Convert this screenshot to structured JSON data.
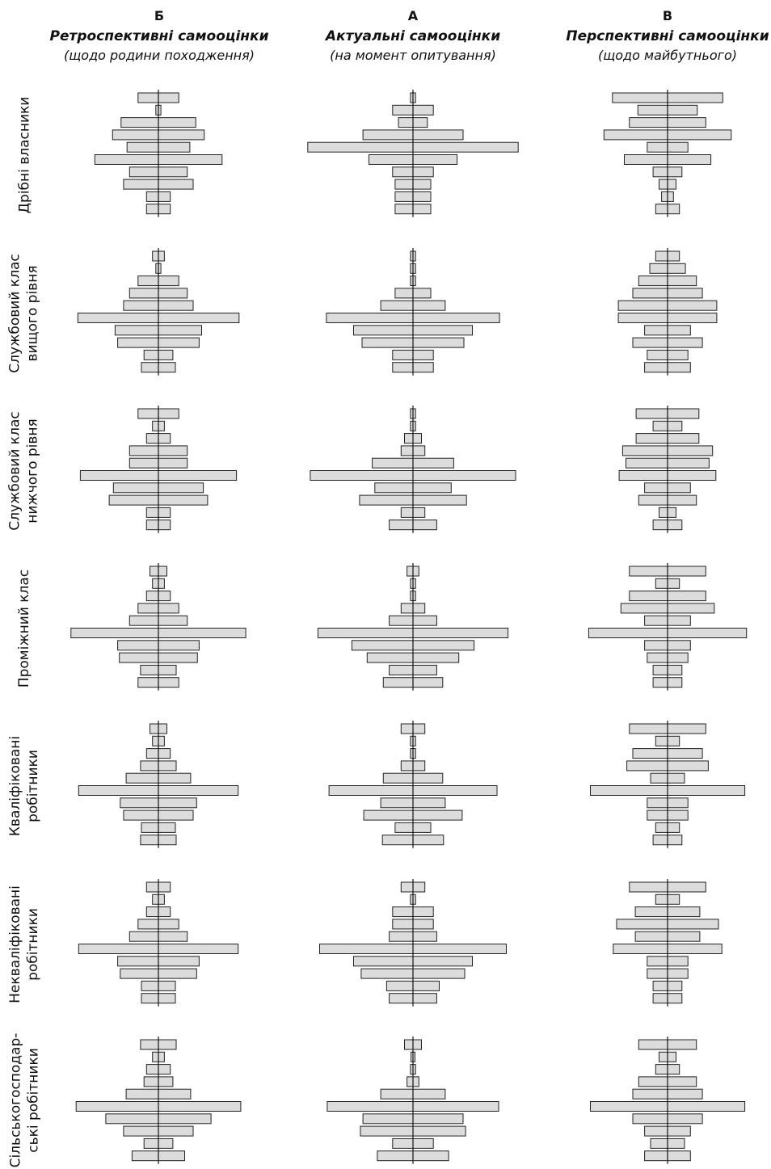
{
  "columns": [
    {
      "letter": "Б",
      "title": "Ретроспективні самооцінки",
      "subtitle": "(щодо родини походження)"
    },
    {
      "letter": "А",
      "title": "Актуальні самооцінки",
      "subtitle": "(на момент опитування)"
    },
    {
      "letter": "В",
      "title": "Перспективні самооцінки",
      "subtitle": "(щодо майбутнього)"
    }
  ],
  "rows": [
    {
      "label": [
        "Дрібні власники"
      ]
    },
    {
      "label": [
        "Службовий клас",
        "вищого рівня"
      ]
    },
    {
      "label": [
        "Службовий клас",
        "нижчого рівня"
      ]
    },
    {
      "label": [
        "Проміжний клас"
      ]
    },
    {
      "label": [
        "Кваліфіковані",
        "робітники"
      ]
    },
    {
      "label": [
        "Некваліфіковані",
        "робітники"
      ]
    },
    {
      "label": [
        "Сільськогосподар-",
        "ські робітники"
      ]
    }
  ],
  "chart_data": {
    "type": "bar",
    "orientation": "horizontal-centered (population pyramid)",
    "levels_per_chart": 10,
    "bar_fill": "#dcdcdc",
    "bar_stroke": "#222222",
    "note_on_values": "bar width relative units (full half-width ≈ 1.0), estimated; 10 bars per panel from top to bottom",
    "panels": [
      [
        {
          "left": 0.24,
          "right": 0.24
        },
        {
          "left": 0.03,
          "right": 0.03
        },
        {
          "left": 0.44,
          "right": 0.44
        },
        {
          "left": 0.54,
          "right": 0.54
        },
        {
          "left": 0.37,
          "right": 0.37
        },
        {
          "left": 0.75,
          "right": 0.75
        },
        {
          "left": 0.34,
          "right": 0.34
        },
        {
          "left": 0.41,
          "right": 0.41
        },
        {
          "left": 0.14,
          "right": 0.14
        },
        {
          "left": 0.14,
          "right": 0.14
        }
      ],
      [
        {
          "left": 0.03,
          "right": 0.03
        },
        {
          "left": 0.24,
          "right": 0.24
        },
        {
          "left": 0.17,
          "right": 0.17
        },
        {
          "left": 0.59,
          "right": 0.59
        },
        {
          "left": 1.24,
          "right": 1.24
        },
        {
          "left": 0.52,
          "right": 0.52
        },
        {
          "left": 0.24,
          "right": 0.24
        },
        {
          "left": 0.21,
          "right": 0.21
        },
        {
          "left": 0.21,
          "right": 0.21
        },
        {
          "left": 0.21,
          "right": 0.21
        }
      ],
      [
        {
          "left": 0.65,
          "right": 0.65
        },
        {
          "left": 0.35,
          "right": 0.35
        },
        {
          "left": 0.45,
          "right": 0.45
        },
        {
          "left": 0.75,
          "right": 0.75
        },
        {
          "left": 0.24,
          "right": 0.24
        },
        {
          "left": 0.51,
          "right": 0.51
        },
        {
          "left": 0.17,
          "right": 0.17
        },
        {
          "left": 0.1,
          "right": 0.1
        },
        {
          "left": 0.07,
          "right": 0.07
        },
        {
          "left": 0.14,
          "right": 0.14
        }
      ],
      [
        {
          "left": 0.07,
          "right": 0.07
        },
        {
          "left": 0.03,
          "right": 0.03
        },
        {
          "left": 0.24,
          "right": 0.24
        },
        {
          "left": 0.34,
          "right": 0.34
        },
        {
          "left": 0.41,
          "right": 0.41
        },
        {
          "left": 0.95,
          "right": 0.95
        },
        {
          "left": 0.51,
          "right": 0.51
        },
        {
          "left": 0.48,
          "right": 0.48
        },
        {
          "left": 0.17,
          "right": 0.17
        },
        {
          "left": 0.2,
          "right": 0.2
        }
      ],
      [
        {
          "left": 0.03,
          "right": 0.03
        },
        {
          "left": 0.03,
          "right": 0.03
        },
        {
          "left": 0.03,
          "right": 0.03
        },
        {
          "left": 0.21,
          "right": 0.21
        },
        {
          "left": 0.38,
          "right": 0.38
        },
        {
          "left": 1.02,
          "right": 1.02
        },
        {
          "left": 0.7,
          "right": 0.7
        },
        {
          "left": 0.6,
          "right": 0.6
        },
        {
          "left": 0.24,
          "right": 0.24
        },
        {
          "left": 0.24,
          "right": 0.24
        }
      ],
      [
        {
          "left": 0.14,
          "right": 0.14
        },
        {
          "left": 0.21,
          "right": 0.21
        },
        {
          "left": 0.34,
          "right": 0.34
        },
        {
          "left": 0.41,
          "right": 0.41
        },
        {
          "left": 0.58,
          "right": 0.58
        },
        {
          "left": 0.58,
          "right": 0.58
        },
        {
          "left": 0.27,
          "right": 0.27
        },
        {
          "left": 0.41,
          "right": 0.41
        },
        {
          "left": 0.24,
          "right": 0.24
        },
        {
          "left": 0.27,
          "right": 0.27
        }
      ],
      [
        {
          "left": 0.24,
          "right": 0.24
        },
        {
          "left": 0.07,
          "right": 0.07
        },
        {
          "left": 0.14,
          "right": 0.14
        },
        {
          "left": 0.34,
          "right": 0.34
        },
        {
          "left": 0.34,
          "right": 0.34
        },
        {
          "left": 0.92,
          "right": 0.92
        },
        {
          "left": 0.53,
          "right": 0.53
        },
        {
          "left": 0.58,
          "right": 0.58
        },
        {
          "left": 0.14,
          "right": 0.14
        },
        {
          "left": 0.14,
          "right": 0.14
        }
      ],
      [
        {
          "left": 0.03,
          "right": 0.03
        },
        {
          "left": 0.03,
          "right": 0.03
        },
        {
          "left": 0.1,
          "right": 0.1
        },
        {
          "left": 0.14,
          "right": 0.14
        },
        {
          "left": 0.48,
          "right": 0.48
        },
        {
          "left": 1.21,
          "right": 1.21
        },
        {
          "left": 0.45,
          "right": 0.45
        },
        {
          "left": 0.63,
          "right": 0.63
        },
        {
          "left": 0.14,
          "right": 0.14
        },
        {
          "left": 0.28,
          "right": 0.28
        }
      ],
      [
        {
          "left": 0.37,
          "right": 0.37
        },
        {
          "left": 0.17,
          "right": 0.17
        },
        {
          "left": 0.37,
          "right": 0.37
        },
        {
          "left": 0.53,
          "right": 0.53
        },
        {
          "left": 0.49,
          "right": 0.49
        },
        {
          "left": 0.57,
          "right": 0.57
        },
        {
          "left": 0.27,
          "right": 0.27
        },
        {
          "left": 0.34,
          "right": 0.34
        },
        {
          "left": 0.1,
          "right": 0.1
        },
        {
          "left": 0.17,
          "right": 0.17
        }
      ],
      [
        {
          "left": 0.1,
          "right": 0.1
        },
        {
          "left": 0.07,
          "right": 0.07
        },
        {
          "left": 0.14,
          "right": 0.14
        },
        {
          "left": 0.24,
          "right": 0.24
        },
        {
          "left": 0.34,
          "right": 0.34
        },
        {
          "left": 1.03,
          "right": 1.03
        },
        {
          "left": 0.48,
          "right": 0.48
        },
        {
          "left": 0.46,
          "right": 0.46
        },
        {
          "left": 0.21,
          "right": 0.21
        },
        {
          "left": 0.24,
          "right": 0.24
        }
      ],
      [
        {
          "left": 0.07,
          "right": 0.07
        },
        {
          "left": 0.03,
          "right": 0.03
        },
        {
          "left": 0.03,
          "right": 0.03
        },
        {
          "left": 0.14,
          "right": 0.14
        },
        {
          "left": 0.28,
          "right": 0.28
        },
        {
          "left": 1.12,
          "right": 1.12
        },
        {
          "left": 0.72,
          "right": 0.72
        },
        {
          "left": 0.54,
          "right": 0.54
        },
        {
          "left": 0.28,
          "right": 0.28
        },
        {
          "left": 0.35,
          "right": 0.35
        }
      ],
      [
        {
          "left": 0.45,
          "right": 0.45
        },
        {
          "left": 0.14,
          "right": 0.14
        },
        {
          "left": 0.45,
          "right": 0.45
        },
        {
          "left": 0.55,
          "right": 0.55
        },
        {
          "left": 0.27,
          "right": 0.27
        },
        {
          "left": 0.93,
          "right": 0.93
        },
        {
          "left": 0.27,
          "right": 0.27
        },
        {
          "left": 0.24,
          "right": 0.24
        },
        {
          "left": 0.17,
          "right": 0.17
        },
        {
          "left": 0.17,
          "right": 0.17
        }
      ],
      [
        {
          "left": 0.1,
          "right": 0.1
        },
        {
          "left": 0.07,
          "right": 0.07
        },
        {
          "left": 0.14,
          "right": 0.14
        },
        {
          "left": 0.21,
          "right": 0.21
        },
        {
          "left": 0.38,
          "right": 0.38
        },
        {
          "left": 0.94,
          "right": 0.94
        },
        {
          "left": 0.45,
          "right": 0.45
        },
        {
          "left": 0.41,
          "right": 0.41
        },
        {
          "left": 0.2,
          "right": 0.2
        },
        {
          "left": 0.21,
          "right": 0.21
        }
      ],
      [
        {
          "left": 0.14,
          "right": 0.14
        },
        {
          "left": 0.03,
          "right": 0.03
        },
        {
          "left": 0.03,
          "right": 0.03
        },
        {
          "left": 0.14,
          "right": 0.14
        },
        {
          "left": 0.35,
          "right": 0.35
        },
        {
          "left": 0.99,
          "right": 0.99
        },
        {
          "left": 0.38,
          "right": 0.38
        },
        {
          "left": 0.58,
          "right": 0.58
        },
        {
          "left": 0.21,
          "right": 0.21
        },
        {
          "left": 0.36,
          "right": 0.36
        }
      ],
      [
        {
          "left": 0.45,
          "right": 0.45
        },
        {
          "left": 0.14,
          "right": 0.14
        },
        {
          "left": 0.41,
          "right": 0.41
        },
        {
          "left": 0.48,
          "right": 0.48
        },
        {
          "left": 0.2,
          "right": 0.2
        },
        {
          "left": 0.91,
          "right": 0.91
        },
        {
          "left": 0.24,
          "right": 0.24
        },
        {
          "left": 0.24,
          "right": 0.24
        },
        {
          "left": 0.14,
          "right": 0.14
        },
        {
          "left": 0.17,
          "right": 0.17
        }
      ],
      [
        {
          "left": 0.14,
          "right": 0.14
        },
        {
          "left": 0.07,
          "right": 0.07
        },
        {
          "left": 0.14,
          "right": 0.14
        },
        {
          "left": 0.24,
          "right": 0.24
        },
        {
          "left": 0.34,
          "right": 0.34
        },
        {
          "left": 0.94,
          "right": 0.94
        },
        {
          "left": 0.48,
          "right": 0.48
        },
        {
          "left": 0.45,
          "right": 0.45
        },
        {
          "left": 0.2,
          "right": 0.2
        },
        {
          "left": 0.2,
          "right": 0.2
        }
      ],
      [
        {
          "left": 0.14,
          "right": 0.14
        },
        {
          "left": 0.03,
          "right": 0.03
        },
        {
          "left": 0.24,
          "right": 0.24
        },
        {
          "left": 0.24,
          "right": 0.24
        },
        {
          "left": 0.28,
          "right": 0.28
        },
        {
          "left": 1.1,
          "right": 1.1
        },
        {
          "left": 0.7,
          "right": 0.7
        },
        {
          "left": 0.61,
          "right": 0.61
        },
        {
          "left": 0.31,
          "right": 0.31
        },
        {
          "left": 0.28,
          "right": 0.28
        }
      ],
      [
        {
          "left": 0.45,
          "right": 0.45
        },
        {
          "left": 0.14,
          "right": 0.14
        },
        {
          "left": 0.38,
          "right": 0.38
        },
        {
          "left": 0.6,
          "right": 0.6
        },
        {
          "left": 0.38,
          "right": 0.38
        },
        {
          "left": 0.64,
          "right": 0.64
        },
        {
          "left": 0.24,
          "right": 0.24
        },
        {
          "left": 0.24,
          "right": 0.24
        },
        {
          "left": 0.17,
          "right": 0.17
        },
        {
          "left": 0.17,
          "right": 0.17
        }
      ],
      [
        {
          "left": 0.21,
          "right": 0.21
        },
        {
          "left": 0.07,
          "right": 0.07
        },
        {
          "left": 0.14,
          "right": 0.14
        },
        {
          "left": 0.17,
          "right": 0.17
        },
        {
          "left": 0.38,
          "right": 0.38
        },
        {
          "left": 0.97,
          "right": 0.97
        },
        {
          "left": 0.62,
          "right": 0.62
        },
        {
          "left": 0.41,
          "right": 0.41
        },
        {
          "left": 0.17,
          "right": 0.17
        },
        {
          "left": 0.31,
          "right": 0.31
        }
      ],
      [
        {
          "left": 0.1,
          "right": 0.1
        },
        {
          "left": 0.0,
          "right": 0.0
        },
        {
          "left": 0.03,
          "right": 0.03
        },
        {
          "left": 0.07,
          "right": 0.07
        },
        {
          "left": 0.38,
          "right": 0.38
        },
        {
          "left": 1.01,
          "right": 1.01
        },
        {
          "left": 0.59,
          "right": 0.59
        },
        {
          "left": 0.62,
          "right": 0.62
        },
        {
          "left": 0.24,
          "right": 0.24
        },
        {
          "left": 0.42,
          "right": 0.42
        }
      ],
      [
        {
          "left": 0.34,
          "right": 0.34
        },
        {
          "left": 0.1,
          "right": 0.1
        },
        {
          "left": 0.14,
          "right": 0.14
        },
        {
          "left": 0.34,
          "right": 0.34
        },
        {
          "left": 0.41,
          "right": 0.41
        },
        {
          "left": 0.91,
          "right": 0.91
        },
        {
          "left": 0.41,
          "right": 0.41
        },
        {
          "left": 0.27,
          "right": 0.27
        },
        {
          "left": 0.2,
          "right": 0.2
        },
        {
          "left": 0.27,
          "right": 0.27
        }
      ]
    ]
  }
}
